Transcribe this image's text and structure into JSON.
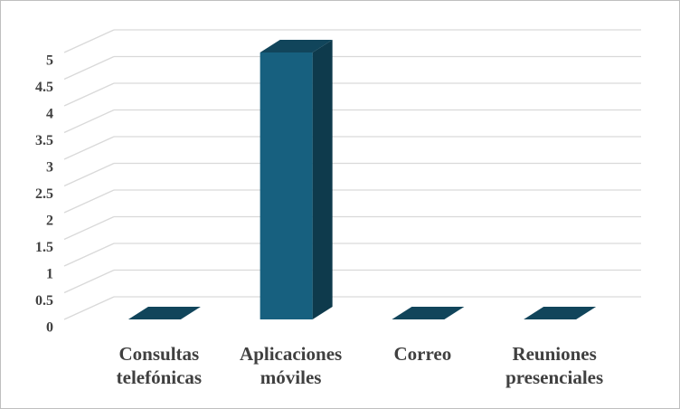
{
  "chart_data": {
    "type": "bar3d",
    "categories": [
      "Consultas telefónicas",
      "Aplicaciones móviles",
      "Correo",
      "Reuniones presenciales"
    ],
    "values": [
      0,
      5,
      0,
      0
    ],
    "color": "#17607f",
    "ylim": [
      0,
      5
    ],
    "yticks": [
      0,
      0.5,
      1,
      1.5,
      2,
      2.5,
      3,
      3.5,
      4,
      4.5,
      5
    ],
    "grid": true
  }
}
